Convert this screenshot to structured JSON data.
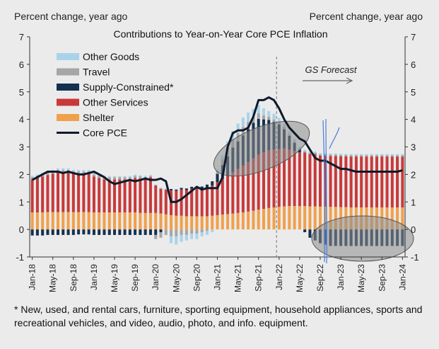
{
  "chart_data": {
    "type": "bar",
    "stacked": true,
    "title": "Contributions to Year-on-Year Core PCE Inflation",
    "ylabel_left": "Percent change, year ago",
    "ylabel_right": "Percent change, year ago",
    "ylim": [
      -1,
      7
    ],
    "yticks": [
      -1,
      0,
      1,
      2,
      3,
      4,
      5,
      6,
      7
    ],
    "x_tick_labels": [
      "Jan-18",
      "May-18",
      "Sep-18",
      "Jan-19",
      "May-19",
      "Sep-19",
      "Jan-20",
      "May-20",
      "Sep-20",
      "Jan-21",
      "May-21",
      "Sep-21",
      "Jan-22",
      "May-22",
      "Sep-22",
      "Jan-23",
      "May-23",
      "Sep-23",
      "Jan-24"
    ],
    "start_month": "2018-01",
    "n_months": 73,
    "forecast_label": "GS Forecast",
    "forecast_start_index": 48,
    "colors": {
      "Other Goods": "#a9d3ea",
      "Travel": "#a6a6a6",
      "Supply-Constrained": "#14304f",
      "Other Services": "#c8393a",
      "Shelter": "#f0a04b",
      "Core PCE": "#0e1a2b"
    },
    "series": [
      {
        "name": "Other Goods",
        "kind": "bar",
        "values": [
          0.05,
          0.05,
          0.06,
          0.06,
          0.06,
          0.06,
          0.06,
          0.06,
          0.06,
          0.05,
          0.05,
          0.05,
          0.04,
          0.04,
          0.04,
          0.04,
          0.04,
          0.04,
          0.04,
          0.04,
          0.04,
          0.04,
          0.04,
          0.04,
          0.04,
          0.04,
          0.05,
          -0.25,
          -0.3,
          -0.25,
          -0.2,
          -0.2,
          -0.2,
          -0.15,
          -0.15,
          -0.1,
          0.05,
          0.15,
          0.25,
          0.3,
          0.35,
          0.35,
          0.35,
          0.3,
          0.3,
          0.25,
          0.2,
          0.2,
          0.15,
          0.12,
          0.1,
          0.08,
          0.06,
          0.05,
          0.05,
          0.04,
          0.04,
          0.04,
          0.04,
          0.04,
          0.04,
          0.04,
          0.04,
          0.04,
          0.04,
          0.04,
          0.04,
          0.04,
          0.04,
          0.04,
          0.04,
          0.04,
          0.04
        ]
      },
      {
        "name": "Travel",
        "kind": "bar",
        "values": [
          0.08,
          0.08,
          0.08,
          0.08,
          0.08,
          0.08,
          0.08,
          0.08,
          0.08,
          0.08,
          0.08,
          0.08,
          0.08,
          0.08,
          0.08,
          0.08,
          0.08,
          0.08,
          0.08,
          0.08,
          0.08,
          0.08,
          0.06,
          0.04,
          -0.15,
          -0.2,
          -0.2,
          -0.25,
          -0.25,
          -0.2,
          -0.2,
          -0.15,
          -0.15,
          -0.1,
          -0.05,
          0.0,
          0.1,
          0.2,
          0.3,
          0.3,
          0.3,
          0.3,
          0.25,
          0.2,
          0.2,
          0.15,
          0.12,
          0.1,
          0.08,
          0.08,
          0.06,
          0.06,
          0.05,
          0.05,
          0.05,
          0.05,
          0.05,
          0.05,
          0.05,
          0.05,
          0.05,
          0.05,
          0.05,
          0.05,
          0.05,
          0.05,
          0.05,
          0.05,
          0.05,
          0.05,
          0.05,
          0.05,
          0.05
        ]
      },
      {
        "name": "Supply-Constrained",
        "kind": "bar",
        "values": [
          -0.22,
          -0.22,
          -0.22,
          -0.2,
          -0.2,
          -0.2,
          -0.2,
          -0.2,
          -0.2,
          -0.18,
          -0.18,
          -0.18,
          -0.2,
          -0.2,
          -0.2,
          -0.2,
          -0.2,
          -0.2,
          -0.2,
          -0.2,
          -0.2,
          -0.2,
          -0.2,
          -0.2,
          -0.2,
          -0.1,
          0.0,
          0.05,
          0.05,
          0.06,
          0.06,
          0.07,
          0.08,
          0.08,
          0.1,
          0.15,
          0.3,
          0.5,
          0.7,
          0.9,
          1.0,
          1.1,
          1.2,
          1.3,
          1.3,
          1.2,
          1.1,
          1.0,
          0.9,
          0.7,
          0.5,
          0.3,
          0.1,
          -0.1,
          -0.3,
          -0.4,
          -0.5,
          -0.55,
          -0.6,
          -0.6,
          -0.6,
          -0.6,
          -0.6,
          -0.6,
          -0.6,
          -0.6,
          -0.6,
          -0.6,
          -0.6,
          -0.6,
          -0.6,
          -0.6,
          -0.6
        ]
      },
      {
        "name": "Other Services",
        "kind": "bar",
        "values": [
          1.2,
          1.25,
          1.3,
          1.35,
          1.4,
          1.45,
          1.45,
          1.45,
          1.4,
          1.4,
          1.4,
          1.4,
          1.3,
          1.25,
          1.2,
          1.2,
          1.2,
          1.2,
          1.2,
          1.2,
          1.25,
          1.25,
          1.25,
          1.3,
          1.0,
          0.9,
          0.9,
          0.9,
          0.9,
          0.95,
          0.95,
          1.0,
          1.0,
          1.0,
          1.05,
          1.1,
          1.2,
          1.3,
          1.4,
          1.5,
          1.6,
          1.7,
          1.8,
          1.9,
          2.0,
          2.05,
          2.1,
          2.1,
          2.1,
          2.1,
          2.05,
          2.0,
          1.95,
          1.95,
          1.9,
          1.9,
          1.85,
          1.85,
          1.85,
          1.85,
          1.85,
          1.85,
          1.85,
          1.85,
          1.85,
          1.85,
          1.85,
          1.85,
          1.85,
          1.85,
          1.85,
          1.85,
          1.85
        ]
      },
      {
        "name": "Shelter",
        "kind": "bar",
        "values": [
          0.62,
          0.62,
          0.62,
          0.63,
          0.63,
          0.63,
          0.63,
          0.63,
          0.63,
          0.63,
          0.63,
          0.63,
          0.62,
          0.62,
          0.62,
          0.62,
          0.62,
          0.62,
          0.62,
          0.62,
          0.62,
          0.6,
          0.6,
          0.6,
          0.6,
          0.58,
          0.55,
          0.52,
          0.5,
          0.5,
          0.48,
          0.48,
          0.48,
          0.48,
          0.48,
          0.5,
          0.52,
          0.54,
          0.56,
          0.58,
          0.6,
          0.62,
          0.65,
          0.68,
          0.72,
          0.75,
          0.78,
          0.8,
          0.82,
          0.84,
          0.85,
          0.85,
          0.85,
          0.85,
          0.84,
          0.84,
          0.83,
          0.83,
          0.82,
          0.82,
          0.81,
          0.81,
          0.8,
          0.8,
          0.8,
          0.8,
          0.8,
          0.8,
          0.8,
          0.8,
          0.8,
          0.8,
          0.8
        ]
      },
      {
        "name": "Core PCE",
        "kind": "line",
        "values": [
          1.8,
          1.9,
          2.0,
          2.1,
          2.1,
          2.1,
          2.05,
          2.1,
          2.05,
          2.0,
          2.0,
          2.05,
          2.1,
          2.0,
          1.9,
          1.75,
          1.65,
          1.7,
          1.75,
          1.8,
          1.75,
          1.8,
          1.85,
          1.8,
          1.8,
          1.85,
          1.75,
          1.0,
          1.0,
          1.1,
          1.25,
          1.4,
          1.55,
          1.45,
          1.5,
          1.5,
          1.5,
          1.9,
          3.0,
          3.5,
          3.6,
          3.6,
          3.7,
          4.1,
          4.7,
          4.7,
          4.8,
          4.7,
          4.4,
          4.0,
          3.7,
          3.5,
          3.3,
          3.2,
          2.9,
          2.6,
          2.5,
          2.5,
          2.4,
          2.3,
          2.2,
          2.2,
          2.15,
          2.1,
          2.1,
          2.1,
          2.1,
          2.1,
          2.1,
          2.1,
          2.1,
          2.1,
          2.15
        ]
      }
    ]
  },
  "footnote": "* New, used, and rental cars, furniture, sporting equipment, household appliances, sports and recreational vehicles, and video, audio, photo, and info. equipment."
}
